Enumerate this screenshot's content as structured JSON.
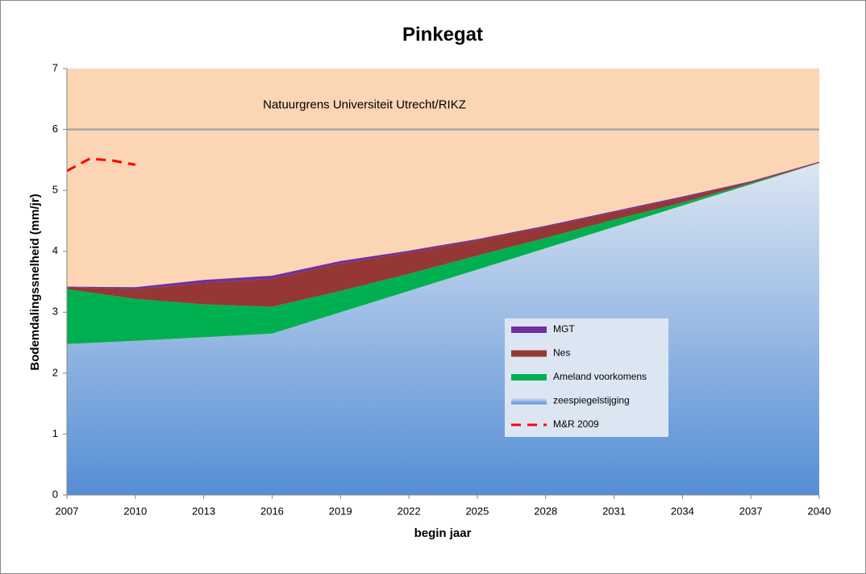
{
  "chart_data": {
    "type": "stacked_area",
    "title": "Pinkegat",
    "xlabel": "begin jaar",
    "ylabel": "Bodemdalingssnelheid   (mm/jr)",
    "x": [
      2007,
      2010,
      2013,
      2016,
      2019,
      2022,
      2025,
      2028,
      2031,
      2034,
      2037,
      2040
    ],
    "series": [
      {
        "name": "zeespiegelstijging",
        "color": "#558ed5",
        "gradient_top": "#dce6f2",
        "values": [
          2.48,
          2.53,
          2.59,
          2.65,
          3.0,
          3.35,
          3.7,
          4.05,
          4.4,
          4.75,
          5.1,
          5.45
        ]
      },
      {
        "name": "Ameland voorkomens",
        "color": "#00b050",
        "values": [
          0.9,
          0.69,
          0.54,
          0.44,
          0.35,
          0.28,
          0.23,
          0.17,
          0.12,
          0.05,
          0.02,
          0.0
        ]
      },
      {
        "name": "Nes",
        "color": "#953735",
        "values": [
          0.03,
          0.16,
          0.35,
          0.46,
          0.45,
          0.35,
          0.25,
          0.18,
          0.12,
          0.08,
          0.02,
          0.01
        ]
      },
      {
        "name": "MGT",
        "color": "#7030a0",
        "values": [
          0.01,
          0.03,
          0.05,
          0.05,
          0.04,
          0.03,
          0.02,
          0.02,
          0.02,
          0.02,
          0.01,
          0.01
        ]
      }
    ],
    "lines": [
      {
        "name": "M&R 2009",
        "color": "#ff0000",
        "dashed": true,
        "x": [
          2007,
          2008,
          2009,
          2010
        ],
        "values": [
          5.32,
          5.52,
          5.49,
          5.42
        ]
      }
    ],
    "reference_line": {
      "value": 6,
      "label": "Natuurgrens Universiteit Utrecht/RIKZ",
      "color": "#a6a6a6"
    },
    "background": "#fcd5b4",
    "xlim": [
      2007,
      2040
    ],
    "xticks": [
      2007,
      2010,
      2013,
      2016,
      2019,
      2022,
      2025,
      2028,
      2031,
      2034,
      2037,
      2040
    ],
    "ylim": [
      0,
      7
    ],
    "yticks": [
      0,
      1,
      2,
      3,
      4,
      5,
      6,
      7
    ],
    "legend": "center-right"
  }
}
